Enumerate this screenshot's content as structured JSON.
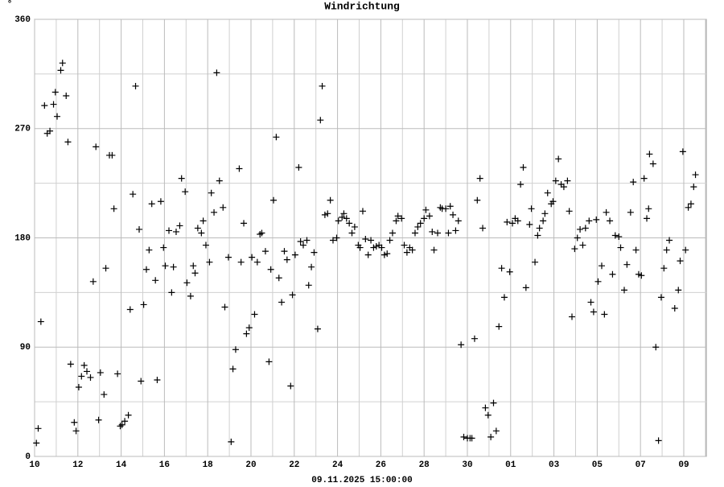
{
  "chart_data": {
    "type": "scatter",
    "title": "Windrichtung",
    "y_unit": "°",
    "xlabel": "09.11.2025 15:00:00",
    "color": "#000000",
    "grid": true,
    "xlim": [
      0,
      745
    ],
    "ylim": [
      0,
      360
    ],
    "yticks": [
      0,
      90,
      180,
      270,
      360
    ],
    "yminor": [
      45,
      135,
      225,
      315
    ],
    "xticks": [
      {
        "value": 0,
        "label": "10"
      },
      {
        "value": 48,
        "label": "12"
      },
      {
        "value": 96,
        "label": "14"
      },
      {
        "value": 144,
        "label": "16"
      },
      {
        "value": 192,
        "label": "18"
      },
      {
        "value": 240,
        "label": "20"
      },
      {
        "value": 288,
        "label": "22"
      },
      {
        "value": 336,
        "label": "24"
      },
      {
        "value": 384,
        "label": "26"
      },
      {
        "value": 432,
        "label": "28"
      },
      {
        "value": 480,
        "label": "30"
      },
      {
        "value": 528,
        "label": "01"
      },
      {
        "value": 576,
        "label": "03"
      },
      {
        "value": 624,
        "label": "05"
      },
      {
        "value": 672,
        "label": "07"
      },
      {
        "value": 720,
        "label": "09"
      }
    ],
    "xminor": [
      24,
      72,
      120,
      168,
      216,
      264,
      312,
      360,
      408,
      456,
      504,
      552,
      600,
      648,
      696,
      744
    ],
    "x": [
      2,
      4,
      7,
      11,
      14,
      17,
      21,
      23,
      25,
      29,
      31,
      35,
      37,
      40,
      44,
      46,
      49,
      52,
      55,
      58,
      62,
      65,
      68,
      71,
      73,
      77,
      79,
      83,
      86,
      88,
      92,
      95,
      97,
      100,
      104,
      106,
      109,
      112,
      116,
      118,
      121,
      124,
      127,
      130,
      134,
      136,
      140,
      143,
      145,
      149,
      152,
      154,
      157,
      161,
      163,
      167,
      169,
      173,
      176,
      178,
      181,
      185,
      187,
      190,
      194,
      196,
      199,
      202,
      205,
      209,
      211,
      215,
      218,
      220,
      223,
      227,
      229,
      232,
      235,
      238,
      241,
      244,
      247,
      250,
      252,
      256,
      260,
      262,
      265,
      268,
      271,
      274,
      277,
      280,
      284,
      286,
      289,
      293,
      295,
      298,
      302,
      304,
      307,
      310,
      314,
      317,
      319,
      322,
      325,
      328,
      331,
      335,
      337,
      341,
      343,
      346,
      349,
      352,
      355,
      359,
      361,
      364,
      367,
      370,
      373,
      376,
      379,
      382,
      385,
      388,
      391,
      394,
      397,
      401,
      403,
      407,
      410,
      413,
      416,
      419,
      422,
      425,
      428,
      432,
      434,
      438,
      441,
      443,
      447,
      450,
      452,
      456,
      459,
      461,
      464,
      467,
      470,
      473,
      476,
      480,
      483,
      485,
      488,
      491,
      494,
      497,
      500,
      503,
      506,
      509,
      512,
      515,
      518,
      521,
      524,
      527,
      530,
      533,
      536,
      539,
      542,
      545,
      549,
      551,
      555,
      558,
      560,
      564,
      566,
      569,
      573,
      575,
      578,
      581,
      584,
      587,
      591,
      593,
      596,
      599,
      602,
      605,
      608,
      611,
      615,
      617,
      620,
      623,
      625,
      629,
      632,
      634,
      638,
      641,
      644,
      648,
      650,
      654,
      657,
      661,
      664,
      667,
      670,
      673,
      676,
      679,
      681,
      682,
      686,
      689,
      692,
      695,
      698,
      701,
      704,
      710,
      714,
      716,
      719,
      722,
      725,
      728,
      731,
      733
    ],
    "values": [
      11,
      23,
      111,
      289,
      266,
      268,
      290,
      300,
      280,
      318,
      324,
      297,
      259,
      76,
      28,
      21,
      57,
      66,
      75,
      70,
      65,
      144,
      255,
      30,
      69,
      51,
      155,
      248,
      248,
      204,
      68,
      25,
      26,
      29,
      34,
      121,
      216,
      305,
      187,
      62,
      125,
      154,
      170,
      208,
      145,
      63,
      210,
      172,
      157,
      186,
      135,
      156,
      185,
      190,
      229,
      218,
      143,
      132,
      157,
      151,
      188,
      184,
      194,
      174,
      160,
      217,
      201,
      316,
      227,
      205,
      123,
      164,
      12,
      72,
      88,
      237,
      160,
      192,
      101,
      106,
      164,
      117,
      160,
      183,
      184,
      169,
      78,
      154,
      211,
      263,
      147,
      127,
      169,
      162,
      58,
      133,
      166,
      238,
      177,
      174,
      178,
      141,
      156,
      168,
      105,
      277,
      305,
      199,
      200,
      211,
      178,
      180,
      194,
      197,
      200,
      196,
      192,
      184,
      189,
      174,
      172,
      202,
      179,
      166,
      178,
      172,
      173,
      174,
      172,
      166,
      167,
      178,
      184,
      194,
      198,
      196,
      174,
      168,
      172,
      170,
      184,
      189,
      192,
      196,
      203,
      198,
      185,
      170,
      184,
      205,
      204,
      204,
      184,
      206,
      199,
      186,
      194,
      92,
      16,
      15,
      15,
      15,
      97,
      211,
      229,
      188,
      40,
      34,
      16,
      44,
      21,
      107,
      155,
      131,
      193,
      152,
      192,
      196,
      194,
      224,
      238,
      139,
      191,
      204,
      160,
      182,
      188,
      194,
      200,
      217,
      208,
      210,
      227,
      245,
      224,
      222,
      227,
      202,
      115,
      171,
      180,
      187,
      174,
      188,
      194,
      127,
      119,
      195,
      144,
      157,
      117,
      201,
      194,
      150,
      182,
      181,
      172,
      137,
      158,
      201,
      226,
      170,
      150,
      149,
      229,
      196,
      204,
      249,
      241,
      90,
      13,
      131,
      155,
      170,
      178,
      122,
      137,
      161,
      251,
      170,
      205,
      208,
      222,
      232
    ]
  }
}
